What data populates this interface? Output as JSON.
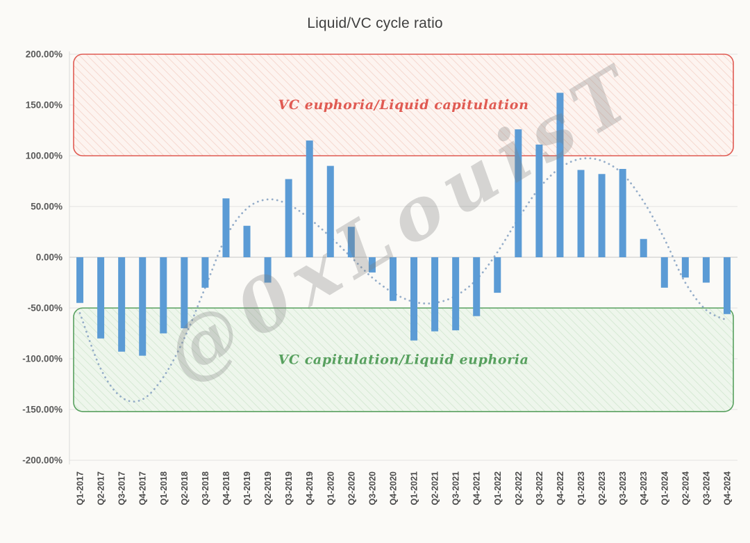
{
  "watermark": "@0xLouisT",
  "chart_data": {
    "type": "bar",
    "title": "Liquid/VC cycle ratio",
    "categories": [
      "Q1-2017",
      "Q2-2017",
      "Q3-2017",
      "Q4-2017",
      "Q1-2018",
      "Q2-2018",
      "Q3-2018",
      "Q4-2018",
      "Q1-2019",
      "Q2-2019",
      "Q3-2019",
      "Q4-2019",
      "Q1-2020",
      "Q2-2020",
      "Q3-2020",
      "Q4-2020",
      "Q1-2021",
      "Q2-2021",
      "Q3-2021",
      "Q4-2021",
      "Q1-2022",
      "Q2-2022",
      "Q3-2022",
      "Q4-2022",
      "Q1-2023",
      "Q2-2023",
      "Q3-2023",
      "Q4-2023",
      "Q1-2024",
      "Q2-2024",
      "Q3-2024",
      "Q4-2024"
    ],
    "values": [
      -45,
      -80,
      -93,
      -97,
      -75,
      -70,
      -30,
      58,
      31,
      -25,
      77,
      115,
      90,
      30,
      -15,
      -43,
      -82,
      -73,
      -72,
      -58,
      -35,
      126,
      111,
      162,
      86,
      82,
      87,
      18,
      -30,
      -20,
      -25,
      -56
    ],
    "ylim": [
      -200,
      200
    ],
    "ytick_step": 50,
    "ytick_suffix": "%",
    "grid": true,
    "bar_color": "#5b9bd5",
    "axis_label_color": "#595959",
    "xlabel": "",
    "ylabel": "",
    "legend": "none",
    "annotations": [
      {
        "name": "vc-euphoria-zone",
        "label": "VC euphoria/Liquid capitulation",
        "from": 100,
        "to": 200,
        "color": "#e05a52",
        "fill": "#fdf4f0",
        "hatch": "#f5d8cf"
      },
      {
        "name": "vc-capitulation-zone",
        "label": "VC capitulation/Liquid euphoria",
        "from": -152,
        "to": -50,
        "color": "#57a05e",
        "fill": "#eef6ec",
        "hatch": "#d6e9d4"
      }
    ],
    "cycle_curve": {
      "style": "dotted",
      "color": "#8fa9c6",
      "values": [
        -55,
        -110,
        -138,
        -140,
        -118,
        -80,
        -30,
        20,
        48,
        57,
        52,
        38,
        20,
        0,
        -20,
        -35,
        -44,
        -45,
        -38,
        -22,
        5,
        38,
        68,
        88,
        97,
        95,
        82,
        55,
        18,
        -25,
        -52,
        -62
      ]
    }
  }
}
